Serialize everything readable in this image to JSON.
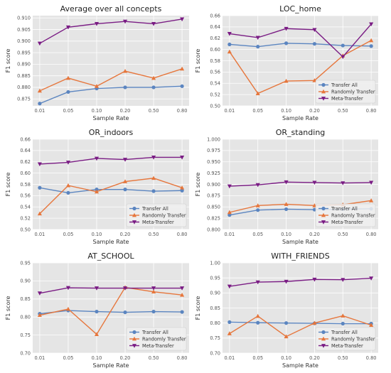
{
  "colors": {
    "transfer_all": "#5b85c0",
    "randomly_transfer": "#e6763c",
    "meta_transfer": "#7a1c84",
    "panel_bg": "#e5e5e5",
    "grid": "#ffffff"
  },
  "chart_data": [
    {
      "type": "line",
      "title": "Average over all concepts",
      "xlabel": "Sample Rate",
      "ylabel": "F1 score",
      "categories": [
        "0.01",
        "0.05",
        "0.10",
        "0.20",
        "0.50",
        "0.80"
      ],
      "ylim": [
        0.872,
        0.911
      ],
      "yticks": [
        "0.875",
        "0.880",
        "0.885",
        "0.890",
        "0.895",
        "0.900",
        "0.905",
        "0.910"
      ],
      "series": [
        {
          "name": "Transfer All",
          "marker": "circle",
          "color": "#5b85c0",
          "values": [
            0.873,
            0.878,
            0.8795,
            0.88,
            0.88,
            0.8805
          ]
        },
        {
          "name": "Randomly Transfer",
          "marker": "triangle-up",
          "color": "#e6763c",
          "values": [
            0.8785,
            0.884,
            0.8805,
            0.887,
            0.884,
            0.888
          ]
        },
        {
          "name": "Meta-Transfer",
          "marker": "triangle-down",
          "color": "#7a1c84",
          "values": [
            0.899,
            0.906,
            0.9075,
            0.9085,
            0.9075,
            0.9095
          ]
        }
      ],
      "legend": "none"
    },
    {
      "type": "line",
      "title": "LOC_home",
      "xlabel": "Sample Rate",
      "ylabel": "F1 score",
      "categories": [
        "0.01",
        "0.05",
        "0.10",
        "0.20",
        "0.50",
        "0.80"
      ],
      "ylim": [
        0.5,
        0.66
      ],
      "yticks": [
        "0.50",
        "0.52",
        "0.54",
        "0.56",
        "0.58",
        "0.60",
        "0.62",
        "0.64",
        "0.66"
      ],
      "series": [
        {
          "name": "Transfer All",
          "marker": "circle",
          "color": "#5b85c0",
          "values": [
            0.609,
            0.605,
            0.611,
            0.61,
            0.607,
            0.606
          ]
        },
        {
          "name": "Randomly Transfer",
          "marker": "triangle-up",
          "color": "#e6763c",
          "values": [
            0.596,
            0.522,
            0.544,
            0.545,
            0.589,
            0.616
          ]
        },
        {
          "name": "Meta-Transfer",
          "marker": "triangle-down",
          "color": "#7a1c84",
          "values": [
            0.628,
            0.621,
            0.637,
            0.635,
            0.587,
            0.645
          ]
        }
      ],
      "legend": "bottom-right"
    },
    {
      "type": "line",
      "title": "OR_indoors",
      "xlabel": "Sample Rate",
      "ylabel": "F1 score",
      "categories": [
        "0.01",
        "0.05",
        "0.10",
        "0.20",
        "0.50",
        "0.80"
      ],
      "ylim": [
        0.5,
        0.66
      ],
      "yticks": [
        "0.50",
        "0.52",
        "0.54",
        "0.56",
        "0.58",
        "0.60",
        "0.62",
        "0.64",
        "0.66"
      ],
      "series": [
        {
          "name": "Transfer All",
          "marker": "circle",
          "color": "#5b85c0",
          "values": [
            0.574,
            0.565,
            0.571,
            0.571,
            0.568,
            0.569
          ]
        },
        {
          "name": "Randomly Transfer",
          "marker": "triangle-up",
          "color": "#e6763c",
          "values": [
            0.528,
            0.578,
            0.567,
            0.585,
            0.591,
            0.574
          ]
        },
        {
          "name": "Meta-Transfer",
          "marker": "triangle-down",
          "color": "#7a1c84",
          "values": [
            0.616,
            0.619,
            0.626,
            0.624,
            0.628,
            0.628
          ]
        }
      ],
      "legend": "bottom-right"
    },
    {
      "type": "line",
      "title": "OR_standing",
      "xlabel": "Sample Rate",
      "ylabel": "F1 score",
      "categories": [
        "0.01",
        "0.05",
        "0.10",
        "0.20",
        "0.50",
        "0.80"
      ],
      "ylim": [
        0.8,
        1.0
      ],
      "yticks": [
        "0.800",
        "0.825",
        "0.850",
        "0.875",
        "0.900",
        "0.925",
        "0.950",
        "0.975",
        "1.000"
      ],
      "series": [
        {
          "name": "Transfer All",
          "marker": "circle",
          "color": "#5b85c0",
          "values": [
            0.832,
            0.843,
            0.845,
            0.844,
            0.845,
            0.846
          ]
        },
        {
          "name": "Randomly Transfer",
          "marker": "triangle-up",
          "color": "#e6763c",
          "values": [
            0.838,
            0.853,
            0.856,
            0.853,
            0.855,
            0.864
          ]
        },
        {
          "name": "Meta-Transfer",
          "marker": "triangle-down",
          "color": "#7a1c84",
          "values": [
            0.896,
            0.899,
            0.905,
            0.904,
            0.903,
            0.904
          ]
        }
      ],
      "legend": "bottom-right"
    },
    {
      "type": "line",
      "title": "AT_SCHOOL",
      "xlabel": "Sample Rate",
      "ylabel": "F1 score",
      "categories": [
        "0.01",
        "0.05",
        "0.10",
        "0.20",
        "0.50",
        "0.80"
      ],
      "ylim": [
        0.7,
        0.95
      ],
      "yticks": [
        "0.70",
        "0.75",
        "0.80",
        "0.85",
        "0.90",
        "0.95"
      ],
      "series": [
        {
          "name": "Transfer All",
          "marker": "circle",
          "color": "#5b85c0",
          "values": [
            0.809,
            0.818,
            0.815,
            0.813,
            0.815,
            0.814
          ]
        },
        {
          "name": "Randomly Transfer",
          "marker": "triangle-up",
          "color": "#e6763c",
          "values": [
            0.805,
            0.822,
            0.752,
            0.882,
            0.87,
            0.861
          ]
        },
        {
          "name": "Meta-Transfer",
          "marker": "triangle-down",
          "color": "#7a1c84",
          "values": [
            0.866,
            0.881,
            0.88,
            0.88,
            0.88,
            0.88
          ]
        }
      ],
      "legend": "bottom-right"
    },
    {
      "type": "line",
      "title": "WITH_FRIENDS",
      "xlabel": "Sample Rate",
      "ylabel": "F1 score",
      "categories": [
        "0.01",
        "0.05",
        "0.10",
        "0.20",
        "0.50",
        "0.80"
      ],
      "ylim": [
        0.7,
        1.0
      ],
      "yticks": [
        "0.70",
        "0.75",
        "0.80",
        "0.85",
        "0.90",
        "0.95",
        "1.00"
      ],
      "series": [
        {
          "name": "Transfer All",
          "marker": "circle",
          "color": "#5b85c0",
          "values": [
            0.803,
            0.801,
            0.8,
            0.799,
            0.798,
            0.798
          ]
        },
        {
          "name": "Randomly Transfer",
          "marker": "triangle-up",
          "color": "#e6763c",
          "values": [
            0.765,
            0.823,
            0.755,
            0.8,
            0.824,
            0.793
          ]
        },
        {
          "name": "Meta-Transfer",
          "marker": "triangle-down",
          "color": "#7a1c84",
          "values": [
            0.922,
            0.936,
            0.938,
            0.945,
            0.944,
            0.949
          ]
        }
      ],
      "legend": "bottom-right"
    }
  ]
}
